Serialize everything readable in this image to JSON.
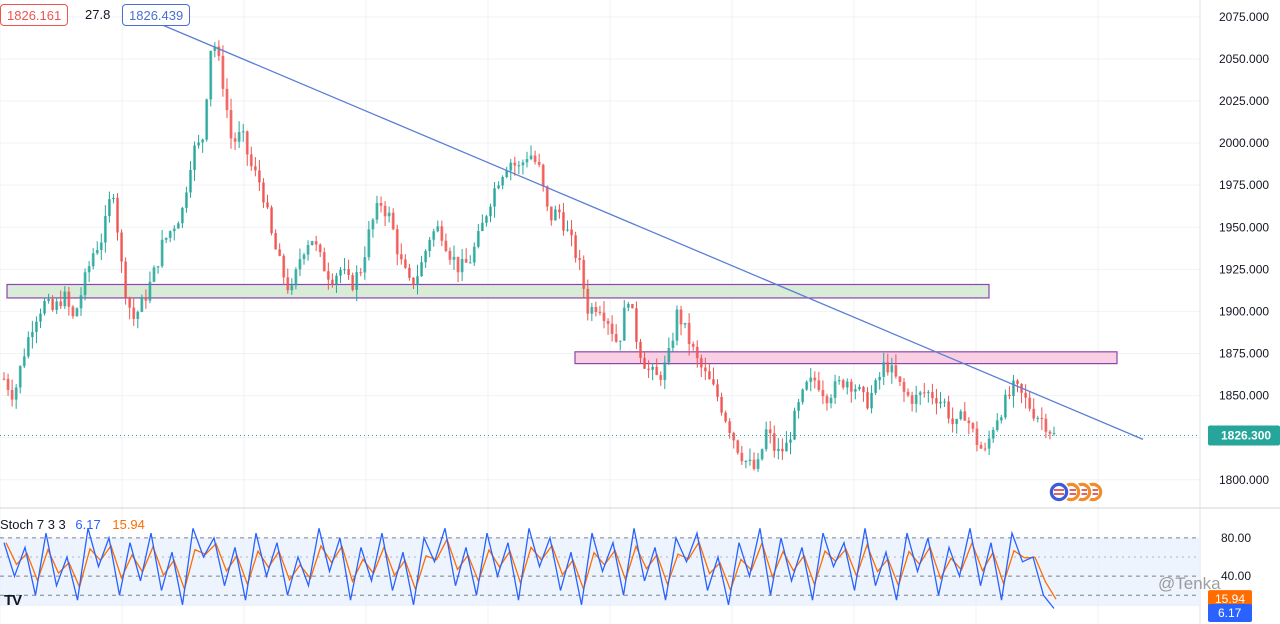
{
  "header": {
    "open_value": "1826.161",
    "change_value": "27.8",
    "second_value": "1826.439"
  },
  "price_axis": {
    "labels": [
      "2075.000",
      "2050.000",
      "2025.000",
      "2000.000",
      "1975.000",
      "1950.000",
      "1925.000",
      "1900.000",
      "1875.000",
      "1850.000",
      "1825.000",
      "1800.000"
    ],
    "current_price": "1826.300",
    "current_price_color": "#26a69a"
  },
  "stoch": {
    "title": "Stoch",
    "params": "7 3 3",
    "k_value": "6.17",
    "d_value": "15.94",
    "levels": [
      "80.00",
      "40.00"
    ],
    "current_k_label": "6.17",
    "current_d_label": "15.94",
    "k_color": "#2962ff",
    "d_color": "#ff6d00"
  },
  "watermark": "@Tenka",
  "logo": "TV",
  "colors": {
    "up": "#26a69a",
    "down": "#ef5350",
    "trendline": "#5b7fd6",
    "support_zone_fill": "#d8ecd8",
    "support_zone_border": "#8e44ad",
    "resistance_zone_fill": "#f9d0e3",
    "resistance_zone_border": "#8e44ad"
  },
  "chart_data": {
    "type": "candlestick",
    "ylim": [
      1785,
      2085
    ],
    "price_path": [
      1860,
      1850,
      1875,
      1895,
      1905,
      1900,
      1910,
      1895,
      1915,
      1935,
      1945,
      1975,
      1920,
      1895,
      1905,
      1920,
      1940,
      1950,
      1960,
      1995,
      2000,
      2065,
      2040,
      2000,
      2005,
      1985,
      1975,
      1945,
      1925,
      1910,
      1935,
      1945,
      1930,
      1920,
      1925,
      1915,
      1925,
      1950,
      1965,
      1955,
      1930,
      1915,
      1925,
      1945,
      1950,
      1935,
      1925,
      1930,
      1945,
      1965,
      1980,
      1990,
      1985,
      1995,
      1985,
      1955,
      1960,
      1945,
      1930,
      1900,
      1905,
      1895,
      1880,
      1910,
      1880,
      1865,
      1860,
      1870,
      1900,
      1885,
      1870,
      1860,
      1850,
      1835,
      1820,
      1810,
      1805,
      1830,
      1815,
      1820,
      1840,
      1855,
      1860,
      1850,
      1855,
      1860,
      1855,
      1845,
      1855,
      1870,
      1860,
      1850,
      1848,
      1852,
      1850,
      1845,
      1830,
      1840,
      1825,
      1815,
      1835,
      1845,
      1855,
      1848,
      1840,
      1835,
      1826.3
    ],
    "support_zone": {
      "low": 1908,
      "high": 1916
    },
    "resistance_zone": {
      "low": 1869,
      "high": 1876
    },
    "trendline": {
      "start_price": 2070,
      "end_price": 1824
    },
    "current_price": 1826.3,
    "stoch": {
      "levels": [
        80,
        40
      ],
      "k_path": [
        75,
        40,
        70,
        20,
        85,
        30,
        60,
        15,
        90,
        50,
        80,
        20,
        75,
        35,
        85,
        25,
        65,
        10,
        90,
        60,
        80,
        30,
        70,
        15,
        85,
        40,
        75,
        20,
        60,
        30,
        90,
        45,
        80,
        15,
        70,
        35,
        85,
        25,
        65,
        10,
        80,
        55,
        90,
        30,
        70,
        20,
        85,
        40,
        75,
        15,
        90,
        50,
        80,
        25,
        65,
        10,
        85,
        45,
        75,
        20,
        90,
        35,
        70,
        15,
        80,
        55,
        85,
        25,
        60,
        10,
        75,
        40,
        90,
        20,
        80,
        35,
        70,
        15,
        85,
        50,
        75,
        25,
        90,
        30,
        65,
        15,
        85,
        45,
        80,
        20,
        70,
        40,
        90,
        30,
        75,
        15,
        85,
        55,
        60,
        20,
        6.17
      ],
      "d_last": 15.94
    }
  }
}
